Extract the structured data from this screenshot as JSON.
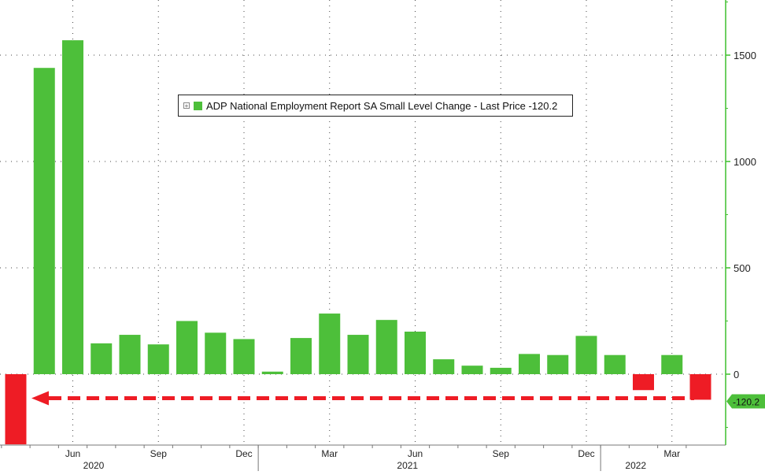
{
  "colors": {
    "positive_bar": "#4dbf3a",
    "negative_bar": "#ee1c25",
    "axis": "#3fbf2e",
    "grid": "#444444",
    "arrow": "#ee1c25"
  },
  "legend": {
    "label": "ADP National Employment Report SA Small Level Change - Last Price -120.2"
  },
  "last_value_badge": "-120.2",
  "chart_data": {
    "type": "bar",
    "categories": [
      "Apr 2020",
      "May 2020",
      "Jun 2020",
      "Jul 2020",
      "Aug 2020",
      "Sep 2020",
      "Oct 2020",
      "Nov 2020",
      "Dec 2020",
      "Jan 2021",
      "Feb 2021",
      "Mar 2021",
      "Apr 2021",
      "May 2021",
      "Jun 2021",
      "Jul 2021",
      "Aug 2021",
      "Sep 2021",
      "Oct 2021",
      "Nov 2021",
      "Dec 2021",
      "Jan 2022",
      "Feb 2022",
      "Mar 2022",
      "Apr 2022"
    ],
    "values": [
      -330,
      1440,
      1570,
      145,
      185,
      140,
      250,
      195,
      165,
      12,
      170,
      285,
      185,
      255,
      200,
      70,
      40,
      30,
      95,
      90,
      180,
      90,
      -75,
      90,
      -120.2
    ],
    "ylim": [
      -330,
      1750
    ],
    "yticks": [
      0,
      500,
      1000,
      1500
    ],
    "ytick_labels": [
      "0",
      "500",
      "1000",
      "1500"
    ],
    "x_month_labels": [
      {
        "index": 2,
        "label": "Jun"
      },
      {
        "index": 5,
        "label": "Sep"
      },
      {
        "index": 8,
        "label": "Dec"
      },
      {
        "index": 11,
        "label": "Mar"
      },
      {
        "index": 14,
        "label": "Jun"
      },
      {
        "index": 17,
        "label": "Sep"
      },
      {
        "index": 20,
        "label": "Dec"
      },
      {
        "index": 23,
        "label": "Mar"
      }
    ],
    "x_year_labels": [
      {
        "index": 4,
        "label": "2020"
      },
      {
        "index": 15,
        "label": "2021"
      },
      {
        "index": 23,
        "label": "2022"
      }
    ],
    "annotation": "dashed arrow at last value",
    "grid": true,
    "legend_position": "top-center"
  }
}
